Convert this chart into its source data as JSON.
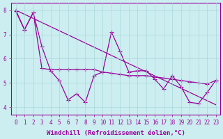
{
  "xlabel": "Windchill (Refroidissement éolien,°C)",
  "background_color": "#cceef0",
  "line_color": "#990099",
  "grid_color": "#aad8da",
  "xlim": [
    -0.5,
    23.5
  ],
  "ylim": [
    3.7,
    8.3
  ],
  "xticks": [
    0,
    1,
    2,
    3,
    4,
    5,
    6,
    7,
    8,
    9,
    10,
    11,
    12,
    13,
    14,
    15,
    16,
    17,
    18,
    19,
    20,
    21,
    22,
    23
  ],
  "yticks": [
    4,
    5,
    6,
    7,
    8
  ],
  "series1_x": [
    0,
    1,
    2,
    3,
    4,
    5,
    6,
    7,
    8,
    9,
    10,
    11,
    12,
    13,
    14,
    15,
    16,
    17,
    18,
    19,
    20,
    21,
    22,
    23
  ],
  "series1_y": [
    8.0,
    7.2,
    7.9,
    6.5,
    5.5,
    5.1,
    4.3,
    4.55,
    4.2,
    5.3,
    5.45,
    7.1,
    6.3,
    5.45,
    5.5,
    5.5,
    5.15,
    4.75,
    5.3,
    4.85,
    4.2,
    4.15,
    4.6,
    5.1
  ],
  "series2_x": [
    0,
    1,
    2,
    3,
    4,
    5,
    6,
    7,
    8,
    9,
    10,
    11,
    12,
    13,
    14,
    15,
    16,
    17,
    18,
    19,
    20,
    21,
    22,
    23
  ],
  "series2_y": [
    7.95,
    7.2,
    7.9,
    5.6,
    5.55,
    5.55,
    5.55,
    5.55,
    5.55,
    5.55,
    5.45,
    5.4,
    5.35,
    5.3,
    5.3,
    5.3,
    5.25,
    5.2,
    5.15,
    5.1,
    5.05,
    5.0,
    4.95,
    5.1
  ],
  "series3_x": [
    0,
    23
  ],
  "series3_y": [
    8.0,
    4.1
  ],
  "marker": "+",
  "markersize": 4,
  "linewidth": 0.9,
  "tick_fontsize": 5.5,
  "label_fontsize": 6.5
}
